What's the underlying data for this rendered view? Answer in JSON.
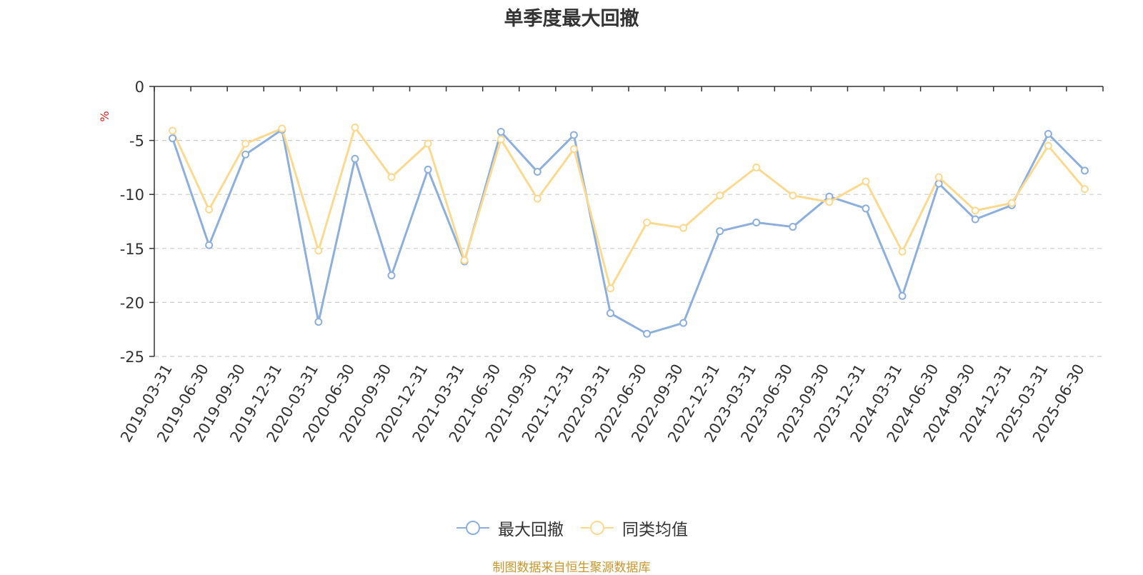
{
  "title": "单季度最大回撤",
  "y_unit": "%",
  "source_note": "制图数据来自恒生聚源数据库",
  "colors": {
    "series_1": "#8dafdd",
    "series_2": "#fbd98f",
    "unit": "#e02020",
    "source": "#c8962b"
  },
  "chart_data": {
    "type": "line",
    "title": "单季度最大回撤",
    "ylabel": "%",
    "ylim": [
      -25,
      0
    ],
    "yticks": [
      0,
      -5,
      -10,
      -15,
      -20,
      -25
    ],
    "grid": true,
    "legend_position": "bottom",
    "categories": [
      "2019-03-31",
      "2019-06-30",
      "2019-09-30",
      "2019-12-31",
      "2020-03-31",
      "2020-06-30",
      "2020-09-30",
      "2020-12-31",
      "2021-03-31",
      "2021-06-30",
      "2021-09-30",
      "2021-12-31",
      "2022-03-31",
      "2022-06-30",
      "2022-09-30",
      "2022-12-31",
      "2023-03-31",
      "2023-06-30",
      "2023-09-30",
      "2023-12-31",
      "2024-03-31",
      "2024-06-30",
      "2024-09-30",
      "2024-12-31",
      "2025-03-31",
      "2025-06-30"
    ],
    "series": [
      {
        "name": "最大回撤",
        "color": "#8dafdd",
        "values": [
          -4.8,
          -14.7,
          -6.3,
          -4.0,
          -21.8,
          -6.7,
          -17.5,
          -7.7,
          -16.2,
          -4.2,
          -7.9,
          -4.5,
          -21.0,
          -22.9,
          -21.9,
          -13.4,
          -12.6,
          -13.0,
          -10.2,
          -11.3,
          -19.4,
          -9.0,
          -12.3,
          -11.0,
          -4.4,
          -7.8
        ]
      },
      {
        "name": "同类均值",
        "color": "#fbd98f",
        "values": [
          -4.1,
          -11.4,
          -5.3,
          -3.9,
          -15.2,
          -3.8,
          -8.4,
          -5.3,
          -16.1,
          -4.9,
          -10.4,
          -5.8,
          -18.7,
          -12.6,
          -13.1,
          -10.1,
          -7.5,
          -10.1,
          -10.7,
          -8.8,
          -15.3,
          -8.4,
          -11.5,
          -10.8,
          -5.5,
          -9.5
        ]
      }
    ]
  }
}
